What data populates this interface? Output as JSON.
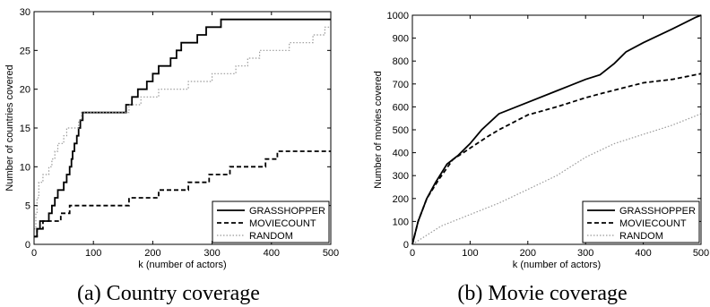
{
  "chart_data": [
    {
      "type": "line",
      "caption": "(a) Country coverage",
      "title": "",
      "xlabel": "k (number of actors)",
      "ylabel": "Number of countries covered",
      "xlim": [
        0,
        500
      ],
      "ylim": [
        0,
        30
      ],
      "xticks": [
        0,
        100,
        200,
        300,
        400,
        500
      ],
      "yticks": [
        0,
        5,
        10,
        15,
        20,
        25,
        30
      ],
      "grid": false,
      "legend_position": "bottom-right",
      "step": true,
      "series": [
        {
          "name": "GRASSHOPPER",
          "style": "solid",
          "color": "#000000",
          "points": [
            [
              0,
              1
            ],
            [
              5,
              2
            ],
            [
              10,
              3
            ],
            [
              25,
              4
            ],
            [
              30,
              5
            ],
            [
              35,
              6
            ],
            [
              40,
              7
            ],
            [
              50,
              8
            ],
            [
              55,
              9
            ],
            [
              60,
              10
            ],
            [
              63,
              11
            ],
            [
              65,
              12
            ],
            [
              68,
              13
            ],
            [
              72,
              14
            ],
            [
              75,
              15
            ],
            [
              78,
              16
            ],
            [
              82,
              17
            ],
            [
              155,
              18
            ],
            [
              165,
              19
            ],
            [
              175,
              20
            ],
            [
              190,
              21
            ],
            [
              200,
              22
            ],
            [
              210,
              23
            ],
            [
              230,
              24
            ],
            [
              240,
              25
            ],
            [
              248,
              26
            ],
            [
              275,
              27
            ],
            [
              290,
              28
            ],
            [
              315,
              29
            ],
            [
              500,
              29
            ]
          ]
        },
        {
          "name": "MOVIECOUNT",
          "style": "dashed",
          "color": "#000000",
          "points": [
            [
              0,
              1
            ],
            [
              5,
              2
            ],
            [
              15,
              3
            ],
            [
              45,
              4
            ],
            [
              60,
              5
            ],
            [
              160,
              6
            ],
            [
              210,
              7
            ],
            [
              260,
              8
            ],
            [
              295,
              9
            ],
            [
              330,
              10
            ],
            [
              390,
              11
            ],
            [
              410,
              12
            ],
            [
              500,
              12
            ]
          ]
        },
        {
          "name": "RANDOM",
          "style": "dotted",
          "color": "#9a9a9a",
          "points": [
            [
              0,
              2
            ],
            [
              3,
              4
            ],
            [
              5,
              6
            ],
            [
              8,
              8
            ],
            [
              15,
              9
            ],
            [
              25,
              10
            ],
            [
              30,
              11
            ],
            [
              35,
              12
            ],
            [
              40,
              13
            ],
            [
              50,
              14
            ],
            [
              55,
              15
            ],
            [
              75,
              16
            ],
            [
              80,
              17
            ],
            [
              160,
              18
            ],
            [
              180,
              19
            ],
            [
              210,
              20
            ],
            [
              260,
              21
            ],
            [
              300,
              22
            ],
            [
              340,
              23
            ],
            [
              360,
              24
            ],
            [
              380,
              25
            ],
            [
              430,
              26
            ],
            [
              470,
              27
            ],
            [
              490,
              28
            ],
            [
              500,
              28
            ]
          ]
        }
      ]
    },
    {
      "type": "line",
      "caption": "(b) Movie coverage",
      "title": "",
      "xlabel": "k (number of actors)",
      "ylabel": "Number of movies covered",
      "xlim": [
        0,
        500
      ],
      "ylim": [
        0,
        1000
      ],
      "xticks": [
        0,
        100,
        200,
        300,
        400,
        500
      ],
      "yticks": [
        0,
        100,
        200,
        300,
        400,
        500,
        600,
        700,
        800,
        900,
        1000
      ],
      "grid": false,
      "legend_position": "bottom-right",
      "step": false,
      "series": [
        {
          "name": "GRASSHOPPER",
          "style": "solid",
          "color": "#000000",
          "points": [
            [
              0,
              0
            ],
            [
              10,
              100
            ],
            [
              25,
              200
            ],
            [
              40,
              270
            ],
            [
              60,
              350
            ],
            [
              80,
              390
            ],
            [
              100,
              440
            ],
            [
              120,
              500
            ],
            [
              150,
              570
            ],
            [
              200,
              620
            ],
            [
              250,
              670
            ],
            [
              300,
              720
            ],
            [
              325,
              740
            ],
            [
              350,
              790
            ],
            [
              370,
              840
            ],
            [
              400,
              880
            ],
            [
              450,
              940
            ],
            [
              490,
              990
            ],
            [
              500,
              1000
            ]
          ]
        },
        {
          "name": "MOVIECOUNT",
          "style": "dashed",
          "color": "#000000",
          "points": [
            [
              0,
              0
            ],
            [
              10,
              100
            ],
            [
              25,
              200
            ],
            [
              45,
              280
            ],
            [
              70,
              370
            ],
            [
              100,
              420
            ],
            [
              130,
              470
            ],
            [
              150,
              500
            ],
            [
              200,
              565
            ],
            [
              250,
              600
            ],
            [
              300,
              640
            ],
            [
              330,
              660
            ],
            [
              400,
              705
            ],
            [
              450,
              720
            ],
            [
              500,
              745
            ]
          ]
        },
        {
          "name": "RANDOM",
          "style": "dotted",
          "color": "#9a9a9a",
          "points": [
            [
              0,
              0
            ],
            [
              50,
              80
            ],
            [
              100,
              130
            ],
            [
              150,
              180
            ],
            [
              200,
              240
            ],
            [
              250,
              300
            ],
            [
              300,
              380
            ],
            [
              350,
              440
            ],
            [
              400,
              480
            ],
            [
              450,
              520
            ],
            [
              500,
              570
            ]
          ]
        }
      ]
    }
  ]
}
